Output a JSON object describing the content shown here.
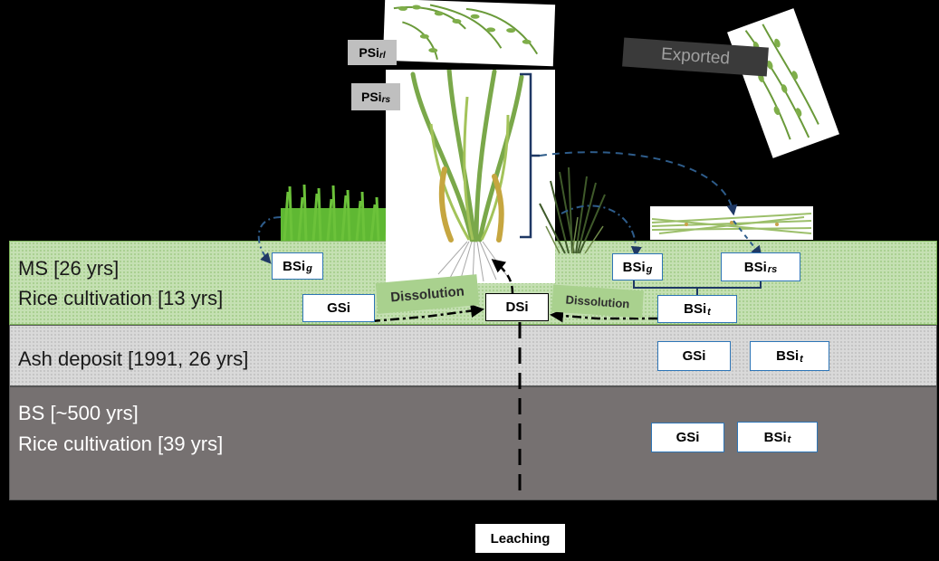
{
  "layers": {
    "ms": {
      "line1": "MS [26 yrs]",
      "line2": "Rice cultivation [13 yrs]"
    },
    "ash": {
      "line1": "Ash deposit [1991, 26 yrs]"
    },
    "bs": {
      "line1": "BS [~500 yrs]",
      "line2": "Rice cultivation [39 yrs]"
    }
  },
  "pools": {
    "psi_rl": {
      "main": "PSi",
      "sub": "rl"
    },
    "psi_rs": {
      "main": "PSi",
      "sub": "rs"
    },
    "bsi_g_left": {
      "main": "BSi",
      "sub": "g"
    },
    "bsi_g_right": {
      "main": "BSi",
      "sub": "g"
    },
    "bsi_rs": {
      "main": "BSi",
      "sub": "rs"
    },
    "bsi_t_ms": {
      "main": "BSi",
      "sub": "t"
    },
    "gsi_ms": {
      "main": "GSi"
    },
    "dsi": {
      "main": "DSi"
    },
    "gsi_ash": {
      "main": "GSi"
    },
    "bsi_t_ash": {
      "main": "BSi",
      "sub": "t"
    },
    "gsi_bs": {
      "main": "GSi"
    },
    "bsi_t_bs": {
      "main": "BSi",
      "sub": "t"
    }
  },
  "processes": {
    "dissolution_left": "Dissolution",
    "dissolution_right": "Dissolution",
    "leaching": "Leaching",
    "exported": "Exported"
  },
  "colors": {
    "ms_layer": "#c5e0b3",
    "ash_layer": "#d9d9d9",
    "bs_layer": "#767171",
    "box_border": "#2e75b6",
    "arrow_blue": "#1f3864",
    "dissolution_label": "#a9d18e",
    "pool_label_grey": "#bfbfbf"
  }
}
